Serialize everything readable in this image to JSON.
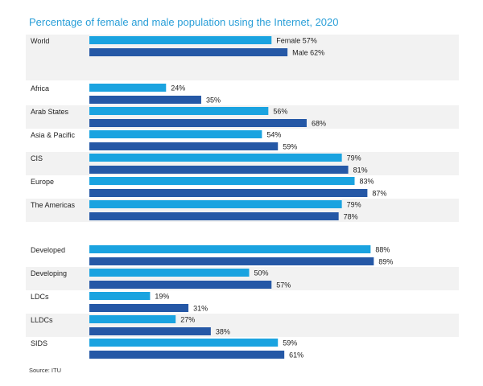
{
  "title": "Percentage of female and male population using the Internet, 2020",
  "source": "Source: ITU",
  "colors": {
    "female": "#1aa3e0",
    "male": "#2558a6",
    "band": "#f2f2f2"
  },
  "chart_data": {
    "type": "bar",
    "orientation": "horizontal",
    "title": "Percentage of female and male population using the Internet, 2020",
    "unit": "%",
    "xlim": [
      0,
      100
    ],
    "grid": false,
    "groups": [
      {
        "categories": [
          "World"
        ]
      },
      {
        "categories": [
          "Africa",
          "Arab States",
          "Asia & Pacific",
          "CIS",
          "Europe",
          "The Americas"
        ]
      },
      {
        "categories": [
          "Developed",
          "Developing",
          "LDCs",
          "LLDCs",
          "SIDS"
        ]
      }
    ],
    "categories": [
      "World",
      "Africa",
      "Arab States",
      "Asia & Pacific",
      "CIS",
      "Europe",
      "The Americas",
      "Developed",
      "Developing",
      "LDCs",
      "LLDCs",
      "SIDS"
    ],
    "series": [
      {
        "name": "Female",
        "values": [
          57,
          24,
          56,
          54,
          79,
          83,
          79,
          88,
          50,
          19,
          27,
          59
        ]
      },
      {
        "name": "Male",
        "values": [
          62,
          35,
          68,
          59,
          81,
          87,
          78,
          89,
          57,
          31,
          38,
          61
        ]
      }
    ],
    "value_labels": [
      [
        "Female 57%",
        "Male 62%"
      ],
      [
        "24%",
        "35%"
      ],
      [
        "56%",
        "68%"
      ],
      [
        "54%",
        "59%"
      ],
      [
        "79%",
        "81%"
      ],
      [
        "83%",
        "87%"
      ],
      [
        "79%",
        "78%"
      ],
      [
        "88%",
        "89%"
      ],
      [
        "50%",
        "57%"
      ],
      [
        "19%",
        "31%"
      ],
      [
        "27%",
        "38%"
      ],
      [
        "59%",
        "61%"
      ]
    ]
  }
}
